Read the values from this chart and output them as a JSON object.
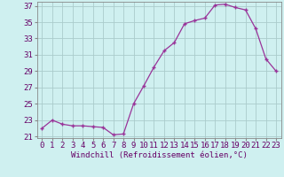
{
  "x": [
    0,
    1,
    2,
    3,
    4,
    5,
    6,
    7,
    8,
    9,
    10,
    11,
    12,
    13,
    14,
    15,
    16,
    17,
    18,
    19,
    20,
    21,
    22,
    23
  ],
  "y": [
    22.0,
    23.0,
    22.5,
    22.3,
    22.3,
    22.2,
    22.1,
    21.2,
    21.3,
    25.0,
    27.2,
    29.5,
    31.5,
    32.5,
    34.8,
    35.2,
    35.5,
    37.1,
    37.2,
    36.8,
    36.5,
    34.2,
    30.5,
    29.0
  ],
  "xlabel": "Windchill (Refroidissement éolien,°C)",
  "ylim_min": 20.8,
  "ylim_max": 37.5,
  "yticks": [
    21,
    23,
    25,
    27,
    29,
    31,
    33,
    35,
    37
  ],
  "line_color": "#993399",
  "marker": "+",
  "bg_color": "#cff0f0",
  "grid_color": "#aacccc",
  "xlabel_fontsize": 6.5,
  "tick_fontsize": 6.5
}
